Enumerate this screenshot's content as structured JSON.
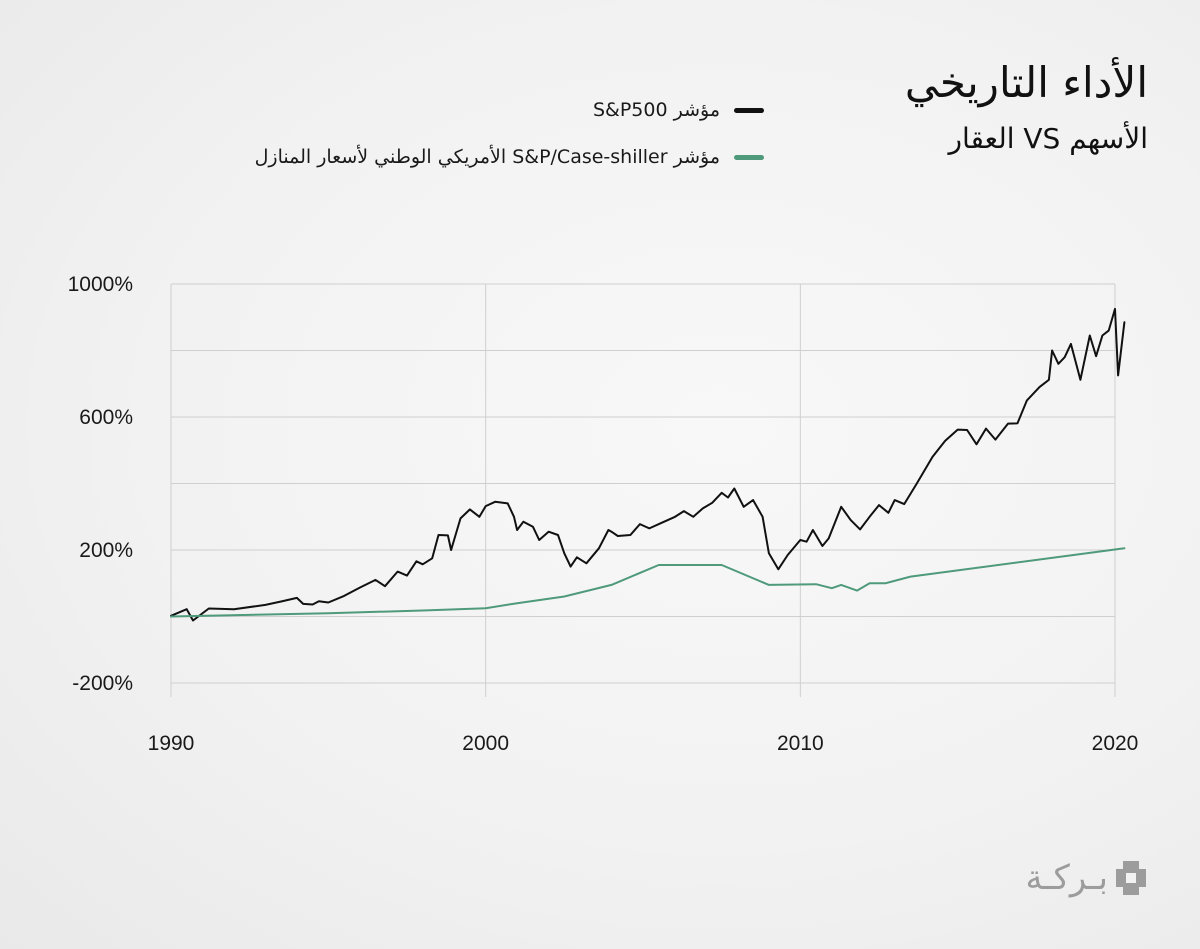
{
  "title": {
    "main": "الأداء التاريخي",
    "sub": "الأسهم VS العقار"
  },
  "legend": [
    {
      "label": "مؤشر S&P500",
      "color": "#111111"
    },
    {
      "label": "مؤشر S&P/Case-shiller الأمريكي الوطني لأسعار المنازل",
      "color": "#4e9a7b"
    }
  ],
  "logo": {
    "text": "بـركـة",
    "icon": "barakah-logo-icon"
  },
  "chart_data": {
    "type": "line",
    "title": "الأداء التاريخي",
    "subtitle": "الأسهم VS العقار",
    "xlabel": "",
    "ylabel": "",
    "xlim": [
      1990,
      2020
    ],
    "ylim": [
      -200,
      1000
    ],
    "x_ticks": [
      1990,
      2000,
      2010,
      2020
    ],
    "x_tick_labels": [
      "1990",
      "2000",
      "2010",
      "2020"
    ],
    "y_ticks": [
      -200,
      200,
      600,
      1000
    ],
    "y_tick_labels": [
      "-200%",
      "200%",
      "600%",
      "1000%"
    ],
    "grid": true,
    "series": [
      {
        "name": "مؤشر S&P500",
        "color": "#111111",
        "points": [
          [
            1990.0,
            2
          ],
          [
            1990.5,
            22
          ],
          [
            1990.7,
            -12
          ],
          [
            1991.2,
            24
          ],
          [
            1992.0,
            22
          ],
          [
            1993.0,
            35
          ],
          [
            1993.5,
            45
          ],
          [
            1994.0,
            56
          ],
          [
            1994.2,
            38
          ],
          [
            1994.5,
            36
          ],
          [
            1994.7,
            46
          ],
          [
            1995.0,
            42
          ],
          [
            1995.5,
            62
          ],
          [
            1996.0,
            87
          ],
          [
            1996.5,
            110
          ],
          [
            1996.8,
            91
          ],
          [
            1997.2,
            135
          ],
          [
            1997.5,
            123
          ],
          [
            1997.8,
            166
          ],
          [
            1998.0,
            157
          ],
          [
            1998.3,
            175
          ],
          [
            1998.5,
            245
          ],
          [
            1998.8,
            244
          ],
          [
            1998.9,
            200
          ],
          [
            1999.2,
            295
          ],
          [
            1999.5,
            322
          ],
          [
            1999.8,
            300
          ],
          [
            2000.0,
            332
          ],
          [
            2000.3,
            345
          ],
          [
            2000.7,
            340
          ],
          [
            2000.9,
            300
          ],
          [
            2001.0,
            260
          ],
          [
            2001.2,
            285
          ],
          [
            2001.5,
            270
          ],
          [
            2001.7,
            230
          ],
          [
            2002.0,
            255
          ],
          [
            2002.3,
            245
          ],
          [
            2002.5,
            190
          ],
          [
            2002.7,
            150
          ],
          [
            2002.9,
            178
          ],
          [
            2003.2,
            160
          ],
          [
            2003.6,
            205
          ],
          [
            2003.9,
            260
          ],
          [
            2004.0,
            255
          ],
          [
            2004.2,
            242
          ],
          [
            2004.6,
            245
          ],
          [
            2004.9,
            278
          ],
          [
            2005.2,
            265
          ],
          [
            2005.6,
            282
          ],
          [
            2006.0,
            299
          ],
          [
            2006.3,
            317
          ],
          [
            2006.6,
            300
          ],
          [
            2006.9,
            325
          ],
          [
            2007.2,
            342
          ],
          [
            2007.5,
            372
          ],
          [
            2007.7,
            358
          ],
          [
            2007.9,
            385
          ],
          [
            2008.2,
            330
          ],
          [
            2008.5,
            350
          ],
          [
            2008.8,
            300
          ],
          [
            2009.0,
            190
          ],
          [
            2009.3,
            142
          ],
          [
            2009.6,
            185
          ],
          [
            2010.0,
            230
          ],
          [
            2010.2,
            225
          ],
          [
            2010.4,
            260
          ],
          [
            2010.7,
            212
          ],
          [
            2010.9,
            235
          ],
          [
            2011.3,
            330
          ],
          [
            2011.6,
            290
          ],
          [
            2011.9,
            262
          ],
          [
            2012.2,
            300
          ],
          [
            2012.5,
            335
          ],
          [
            2012.8,
            312
          ],
          [
            2013.0,
            350
          ],
          [
            2013.3,
            338
          ],
          [
            2013.7,
            400
          ],
          [
            2014.2,
            480
          ],
          [
            2014.6,
            528
          ],
          [
            2015.0,
            562
          ],
          [
            2015.3,
            561
          ],
          [
            2015.6,
            518
          ],
          [
            2015.9,
            565
          ],
          [
            2016.2,
            532
          ],
          [
            2016.6,
            580
          ],
          [
            2016.9,
            581
          ],
          [
            2017.2,
            650
          ],
          [
            2017.6,
            690
          ],
          [
            2017.9,
            712
          ],
          [
            2018.0,
            800
          ],
          [
            2018.2,
            760
          ],
          [
            2018.4,
            780
          ],
          [
            2018.6,
            820
          ],
          [
            2018.9,
            712
          ],
          [
            2019.2,
            845
          ],
          [
            2019.4,
            783
          ],
          [
            2019.6,
            845
          ],
          [
            2019.8,
            860
          ],
          [
            2020.0,
            925
          ],
          [
            2020.1,
            725
          ],
          [
            2020.3,
            885
          ]
        ]
      },
      {
        "name": "مؤشر S&P/Case-shiller الأمريكي الوطني لأسعار المنازل",
        "color": "#4e9a7b",
        "points": [
          [
            1990.0,
            0
          ],
          [
            1995.0,
            10
          ],
          [
            1998.0,
            18
          ],
          [
            2000.0,
            25
          ],
          [
            2001.0,
            40
          ],
          [
            2002.5,
            60
          ],
          [
            2004.0,
            95
          ],
          [
            2005.5,
            155
          ],
          [
            2007.5,
            155
          ],
          [
            2009.0,
            95
          ],
          [
            2010.5,
            97
          ],
          [
            2011.0,
            85
          ],
          [
            2011.3,
            95
          ],
          [
            2011.8,
            78
          ],
          [
            2012.2,
            100
          ],
          [
            2012.7,
            100
          ],
          [
            2013.5,
            120
          ],
          [
            2020.3,
            205
          ]
        ]
      }
    ]
  }
}
